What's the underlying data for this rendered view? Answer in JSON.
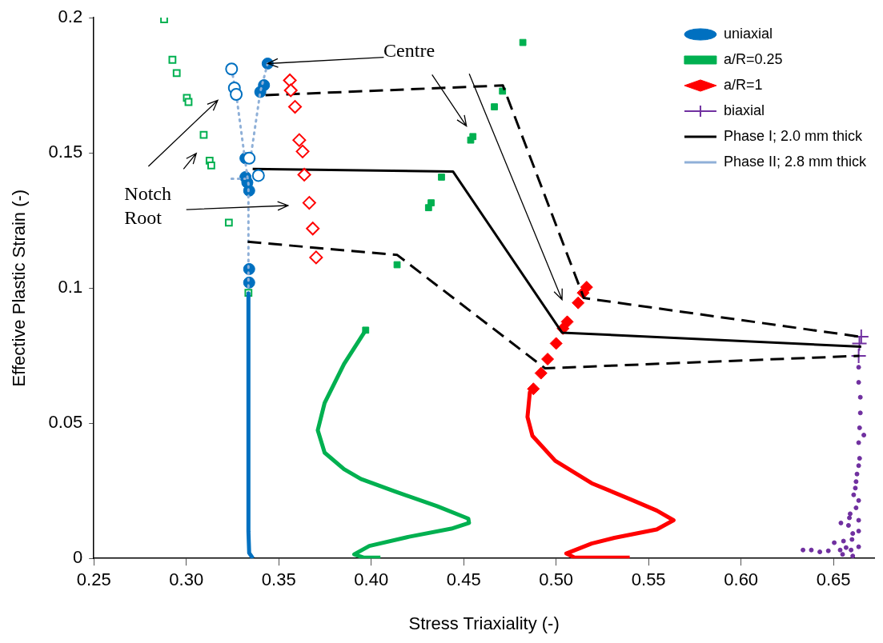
{
  "chart_data": {
    "type": "scatter",
    "xlabel": "Stress Triaxiality (-)",
    "ylabel": "Effective Plastic Strain (-)",
    "xlim": [
      0.25,
      0.672
    ],
    "ylim": [
      0,
      0.2
    ],
    "xticks": [
      0.25,
      {
        "value": 0.3,
        "label": "0.30"
      },
      0.35,
      {
        "value": 0.4,
        "label": "0.40"
      },
      0.45,
      {
        "value": 0.5,
        "label": "0.50"
      },
      0.55,
      {
        "value": 0.6,
        "label": "0.60"
      },
      0.65
    ],
    "yticks": [
      0,
      0.05,
      0.1,
      0.15,
      0.2
    ],
    "legend": "top right",
    "annotations": [
      {
        "text": "Centre",
        "x": 0.344,
        "y": 0.183
      },
      "Notch Root"
    ],
    "series": [
      {
        "name": "uniaxial",
        "type": "scatter",
        "marker": "circle",
        "color": "#0070c0",
        "x": [
          0.344,
          0.342,
          0.34,
          0.332,
          0.332,
          0.333,
          0.334,
          0.334,
          0.334
        ],
        "values": [
          0.183,
          0.175,
          0.1725,
          0.148,
          0.141,
          0.139,
          0.136,
          0.107,
          0.102
        ]
      },
      {
        "name": "a/R=0.25",
        "type": "scatter",
        "marker": "square",
        "color": "#00b050",
        "x": [
          0.482,
          0.471,
          0.4666,
          0.455,
          0.4538,
          0.438,
          0.4324,
          0.431,
          0.414,
          0.397
        ],
        "values": [
          0.1908,
          0.1728,
          0.167,
          0.156,
          0.1547,
          0.141,
          0.1315,
          0.1297,
          0.1086,
          0.0844
        ]
      },
      {
        "name": "a/R=1",
        "type": "scatter",
        "marker": "diamond",
        "color": "#ff0000",
        "x": [
          0.5165,
          0.5146,
          0.5119,
          0.506,
          0.5037,
          0.5,
          0.4954,
          0.4918,
          0.4877
        ],
        "values": [
          0.1003,
          0.0982,
          0.0945,
          0.0875,
          0.085,
          0.0795,
          0.0737,
          0.0685,
          0.0627
        ]
      },
      {
        "name": "biaxial",
        "type": "scatter",
        "marker": "cross",
        "color": "#7030a0",
        "x": [
          0.665,
          0.664,
          0.6636
        ],
        "values": [
          0.082,
          0.0795,
          0.0749
        ]
      },
      {
        "name": "Phase I; 2.0 mm thick",
        "type": "line",
        "marker": "none",
        "line_style": "solid",
        "color": "#000000",
        "x": [
          0.3359,
          0.4442,
          0.5032,
          0.665
        ],
        "values": [
          0.144,
          0.1431,
          0.0835,
          0.0783
        ]
      },
      {
        "name": "Phase II; 2.8 mm thick",
        "type": "line",
        "marker": "none",
        "line_style": "dotted",
        "color": "#8fb0d8",
        "x": [
          0.3245,
          0.327,
          0.3314,
          0.3336,
          0.3336,
          0.3336
        ],
        "values": [
          0.181,
          0.1716,
          0.1492,
          0.1385,
          0.1021,
          0.0997
        ]
      },
      {
        "type": "line",
        "marker": "none",
        "line_style": "dotted",
        "color": "#8fb0d8",
        "x": [
          0.344,
          0.34,
          0.335
        ],
        "values": [
          0.183,
          0.1725,
          0.1492
        ]
      },
      {
        "type": "line",
        "marker": "none",
        "line_style": "dotted",
        "color": "#8fb0d8",
        "x": [
          0.3245,
          0.3318
        ],
        "values": [
          0.1404,
          0.1404
        ]
      },
      {
        "type": "line",
        "marker": "none",
        "line_style": "dashed",
        "color": "#000000",
        "x": [
          0.3428,
          0.4712,
          0.515,
          0.664
        ],
        "values": [
          0.1713,
          0.1749,
          0.0963,
          0.082
        ]
      },
      {
        "type": "line",
        "marker": "none",
        "line_style": "dashed",
        "color": "#000000",
        "x": [
          0.3332,
          0.4141,
          0.494,
          0.664
        ],
        "values": [
          0.1171,
          0.1122,
          0.0703,
          0.0749
        ]
      },
      {
        "type": "scatter",
        "marker": "circle",
        "color": "#0070c0",
        "x": [
          0.3245,
          0.326,
          0.327,
          0.334,
          0.339
        ],
        "values": [
          0.181,
          0.174,
          0.1716,
          0.148,
          0.1416
        ]
      },
      {
        "type": "scatter",
        "marker": "square",
        "color": "#00b050",
        "x": [
          0.288,
          0.2925,
          0.2948,
          0.3003,
          0.3012,
          0.3094,
          0.3126,
          0.3135,
          0.323,
          0.3336
        ],
        "values": [
          0.1994,
          0.1844,
          0.1795,
          0.1703,
          0.1688,
          0.1566,
          0.1471,
          0.1453,
          0.1242,
          0.0982
        ]
      },
      {
        "type": "scatter",
        "marker": "diamond",
        "color": "#ff0000",
        "x": [
          0.356,
          0.3565,
          0.3588,
          0.3611,
          0.3629,
          0.3638,
          0.3665,
          0.3684,
          0.3702
        ],
        "values": [
          0.1768,
          0.1731,
          0.167,
          0.1547,
          0.1505,
          0.1419,
          0.1315,
          0.122,
          0.1113
        ]
      },
      {
        "type": "line",
        "marker": "none",
        "line_style": "solid",
        "color": "#0070c0",
        "x": [
          0.3336,
          0.3336,
          0.3336,
          0.334,
          0.336
        ],
        "values": [
          0.098,
          0.05,
          0.01,
          0.002,
          0
        ]
      },
      {
        "type": "line",
        "marker": "none",
        "line_style": "solid",
        "color": "#00b050",
        "x": [
          0.397,
          0.3853,
          0.3748,
          0.3711,
          0.3748,
          0.3853,
          0.3944,
          0.4127,
          0.4356,
          0.4525,
          0.4529,
          0.4433,
          0.4205,
          0.399,
          0.3908,
          0.3958,
          0.405
        ],
        "values": [
          0.0844,
          0.0719,
          0.0575,
          0.0474,
          0.0391,
          0.033,
          0.0294,
          0.0248,
          0.0193,
          0.0147,
          0.0131,
          0.011,
          0.008,
          0.0046,
          0.0015,
          0.0003,
          0.0003
        ]
      },
      {
        "type": "line",
        "marker": "none",
        "line_style": "solid",
        "color": "#ff0000",
        "x": [
          0.4877,
          0.4858,
          0.4845,
          0.4872,
          0.4995,
          0.5192,
          0.5407,
          0.5544,
          0.5635,
          0.5544,
          0.5315,
          0.5192,
          0.5055,
          0.51,
          0.5398
        ],
        "values": [
          0.0627,
          0.0615,
          0.0523,
          0.0453,
          0.0361,
          0.0278,
          0.0217,
          0.0177,
          0.0141,
          0.0107,
          0.0076,
          0.0055,
          0.0018,
          0.0003,
          0.0003
        ]
      },
      {
        "type": "scatter",
        "marker": "circle",
        "color": "#7030a0",
        "x": [
          0.6636,
          0.6636,
          0.6645,
          0.6645,
          0.6641,
          0.6664,
          0.6636,
          0.6641,
          0.6636,
          0.6627,
          0.6622,
          0.6618,
          0.6609,
          0.6636,
          0.6622,
          0.659,
          0.6586,
          0.654,
          0.6636,
          0.6581,
          0.6636,
          0.6604,
          0.66,
          0.6554,
          0.6504,
          0.6636,
          0.6568,
          0.6536,
          0.6472,
          0.6426,
          0.638,
          0.6335,
          0.6604,
          0.6549,
          0.6595
        ],
        "values": [
          0.0707,
          0.0651,
          0.0596,
          0.0538,
          0.0483,
          0.0456,
          0.0428,
          0.037,
          0.0343,
          0.0312,
          0.0284,
          0.026,
          0.0235,
          0.0214,
          0.0187,
          0.0165,
          0.015,
          0.0131,
          0.0141,
          0.0122,
          0.0101,
          0.0092,
          0.007,
          0.0064,
          0.0058,
          0.0043,
          0.004,
          0.0031,
          0.0028,
          0.0024,
          0.0031,
          0.0031,
          0.0009,
          0.0015,
          0.0031
        ]
      }
    ]
  }
}
